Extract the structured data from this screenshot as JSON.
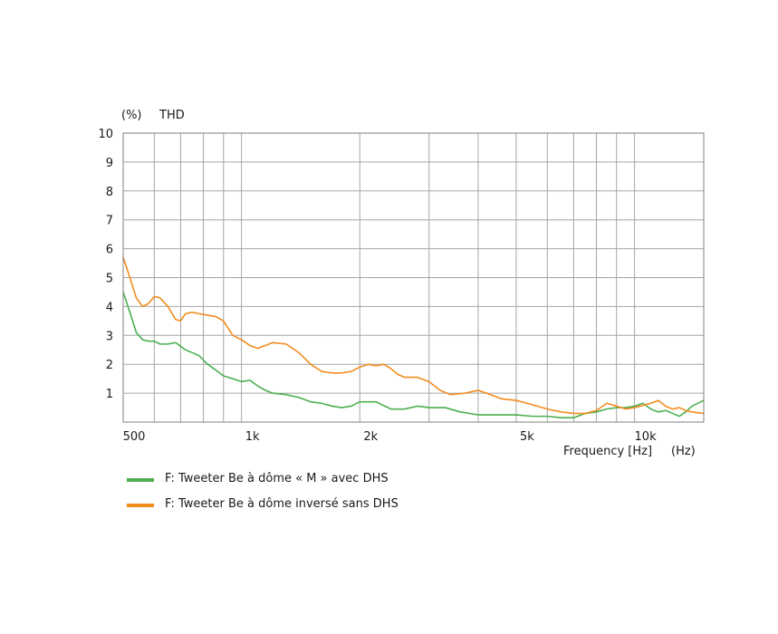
{
  "chart_data": {
    "type": "line",
    "ylabel_unit": "(%)",
    "ylabel": "THD",
    "xlabel": "Frequency [Hz]",
    "xlabel_unit": "(Hz)",
    "x_scale": "log",
    "xlim": [
      500,
      15000
    ],
    "ylim": [
      0,
      10
    ],
    "grid": true,
    "legend_position": "bottom-left",
    "y_ticks": [
      {
        "value": 1,
        "label": "1"
      },
      {
        "value": 2,
        "label": "2"
      },
      {
        "value": 3,
        "label": "3"
      },
      {
        "value": 4,
        "label": "4"
      },
      {
        "value": 5,
        "label": "5"
      },
      {
        "value": 6,
        "label": "6"
      },
      {
        "value": 7,
        "label": "7"
      },
      {
        "value": 8,
        "label": "8"
      },
      {
        "value": 9,
        "label": "9"
      },
      {
        "value": 10,
        "label": "10"
      }
    ],
    "x_ticks": [
      {
        "value": 500,
        "label": "500"
      },
      {
        "value": 1000,
        "label": "1k"
      },
      {
        "value": 2000,
        "label": "2k"
      },
      {
        "value": 5000,
        "label": "5k"
      },
      {
        "value": 10000,
        "label": "10k"
      }
    ],
    "x_gridlines": [
      500,
      600,
      700,
      800,
      900,
      1000,
      2000,
      3000,
      4000,
      5000,
      6000,
      7000,
      8000,
      9000,
      10000
    ],
    "series": [
      {
        "name": "F: Tweeter Be à dôme « M » avec DHS",
        "color": "#4caf50",
        "points": [
          [
            500,
            4.5
          ],
          [
            520,
            3.8
          ],
          [
            540,
            3.1
          ],
          [
            560,
            2.85
          ],
          [
            580,
            2.8
          ],
          [
            600,
            2.8
          ],
          [
            620,
            2.7
          ],
          [
            650,
            2.7
          ],
          [
            680,
            2.75
          ],
          [
            720,
            2.5
          ],
          [
            750,
            2.4
          ],
          [
            780,
            2.3
          ],
          [
            820,
            2.0
          ],
          [
            860,
            1.8
          ],
          [
            900,
            1.6
          ],
          [
            950,
            1.5
          ],
          [
            1000,
            1.4
          ],
          [
            1050,
            1.45
          ],
          [
            1100,
            1.25
          ],
          [
            1150,
            1.1
          ],
          [
            1200,
            1.0
          ],
          [
            1300,
            0.95
          ],
          [
            1400,
            0.85
          ],
          [
            1500,
            0.7
          ],
          [
            1600,
            0.65
          ],
          [
            1700,
            0.55
          ],
          [
            1800,
            0.5
          ],
          [
            1900,
            0.55
          ],
          [
            2000,
            0.7
          ],
          [
            2200,
            0.7
          ],
          [
            2400,
            0.45
          ],
          [
            2600,
            0.45
          ],
          [
            2800,
            0.55
          ],
          [
            3000,
            0.5
          ],
          [
            3300,
            0.5
          ],
          [
            3600,
            0.35
          ],
          [
            4000,
            0.25
          ],
          [
            4500,
            0.25
          ],
          [
            5000,
            0.25
          ],
          [
            5500,
            0.2
          ],
          [
            6000,
            0.2
          ],
          [
            6500,
            0.15
          ],
          [
            7000,
            0.15
          ],
          [
            7500,
            0.3
          ],
          [
            8000,
            0.35
          ],
          [
            8500,
            0.45
          ],
          [
            9000,
            0.5
          ],
          [
            9500,
            0.5
          ],
          [
            10000,
            0.55
          ],
          [
            10500,
            0.65
          ],
          [
            11000,
            0.45
          ],
          [
            11500,
            0.35
          ],
          [
            12000,
            0.4
          ],
          [
            12500,
            0.3
          ],
          [
            13000,
            0.2
          ],
          [
            13500,
            0.35
          ],
          [
            14000,
            0.55
          ],
          [
            15000,
            0.75
          ]
        ]
      },
      {
        "name": "F: Tweeter Be à dôme inversé sans DHS",
        "color": "#f28c1e",
        "points": [
          [
            500,
            5.7
          ],
          [
            520,
            5.0
          ],
          [
            540,
            4.3
          ],
          [
            560,
            4.0
          ],
          [
            580,
            4.1
          ],
          [
            600,
            4.35
          ],
          [
            620,
            4.3
          ],
          [
            650,
            4.0
          ],
          [
            680,
            3.55
          ],
          [
            700,
            3.5
          ],
          [
            720,
            3.75
          ],
          [
            750,
            3.8
          ],
          [
            780,
            3.75
          ],
          [
            820,
            3.7
          ],
          [
            860,
            3.65
          ],
          [
            900,
            3.5
          ],
          [
            950,
            3.0
          ],
          [
            1000,
            2.85
          ],
          [
            1050,
            2.65
          ],
          [
            1100,
            2.55
          ],
          [
            1150,
            2.65
          ],
          [
            1200,
            2.75
          ],
          [
            1300,
            2.7
          ],
          [
            1400,
            2.4
          ],
          [
            1500,
            2.0
          ],
          [
            1600,
            1.75
          ],
          [
            1700,
            1.7
          ],
          [
            1800,
            1.7
          ],
          [
            1900,
            1.75
          ],
          [
            2000,
            1.9
          ],
          [
            2100,
            2.0
          ],
          [
            2200,
            1.95
          ],
          [
            2300,
            2.0
          ],
          [
            2400,
            1.85
          ],
          [
            2500,
            1.65
          ],
          [
            2600,
            1.55
          ],
          [
            2800,
            1.55
          ],
          [
            3000,
            1.4
          ],
          [
            3200,
            1.1
          ],
          [
            3400,
            0.95
          ],
          [
            3700,
            1.0
          ],
          [
            4000,
            1.1
          ],
          [
            4300,
            0.95
          ],
          [
            4600,
            0.8
          ],
          [
            5000,
            0.75
          ],
          [
            5500,
            0.6
          ],
          [
            6000,
            0.45
          ],
          [
            6500,
            0.35
          ],
          [
            7000,
            0.3
          ],
          [
            7500,
            0.3
          ],
          [
            8000,
            0.4
          ],
          [
            8500,
            0.65
          ],
          [
            9000,
            0.55
          ],
          [
            9500,
            0.45
          ],
          [
            10000,
            0.5
          ],
          [
            11000,
            0.65
          ],
          [
            11500,
            0.75
          ],
          [
            12000,
            0.55
          ],
          [
            12500,
            0.45
          ],
          [
            13000,
            0.5
          ],
          [
            13500,
            0.4
          ],
          [
            14000,
            0.35
          ],
          [
            15000,
            0.3
          ]
        ]
      }
    ]
  }
}
